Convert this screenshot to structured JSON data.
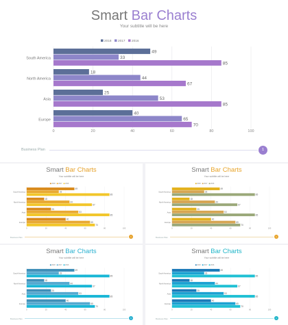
{
  "slides": [
    {
      "key": "main",
      "title_plain": "Smart",
      "title_accent": "Bar Charts",
      "subtitle": "Your subtitle will be here",
      "footer": {
        "label_plain": "Business",
        "label_bold": "Plan",
        "page": "1"
      },
      "colors": {
        "accent": "#9a7fd0",
        "series": [
          "#5c6f98",
          "#8d86c9",
          "#a678cc"
        ],
        "line": "#dcdcee"
      }
    },
    {
      "key": "s1",
      "title_plain": "Smart",
      "title_accent": "Bar Charts",
      "subtitle": "Your subtitle will be here",
      "footer": {
        "label_plain": "Business",
        "label_bold": "Plan",
        "page": "1"
      },
      "colors": {
        "accent": "#e6a12a",
        "series": [
          "#d98a1c",
          "#e8a932",
          "#f2c62a"
        ],
        "line": "#f1d9a8"
      }
    },
    {
      "key": "s2",
      "title_plain": "Smart",
      "title_accent": "Bar Charts",
      "subtitle": "Your subtitle will be here",
      "footer": {
        "label_plain": "Business",
        "label_bold": "Plan",
        "page": "1"
      },
      "colors": {
        "accent": "#e8a42a",
        "series": [
          "#e3b11d",
          "#d6a552",
          "#9aa879"
        ],
        "line": "#efdcb0"
      }
    },
    {
      "key": "s3",
      "title_plain": "Smart",
      "title_accent": "Bar Charts",
      "subtitle": "Your subtitle will be here",
      "footer": {
        "label_plain": "Business",
        "label_bold": "Plan",
        "page": "1"
      },
      "colors": {
        "accent": "#29b0d0",
        "series": [
          "#3f8fb8",
          "#55a9d0",
          "#18b6d6"
        ],
        "line": "#b9e2ee"
      }
    },
    {
      "key": "s4",
      "title_plain": "Smart",
      "title_accent": "Bar Charts",
      "subtitle": "Your subtitle will be here",
      "footer": {
        "label_plain": "Business",
        "label_bold": "Plan",
        "page": "1"
      },
      "colors": {
        "accent": "#1fb5c8",
        "series": [
          "#1b7ab8",
          "#1ca2d2",
          "#20c0d4"
        ],
        "line": "#b5e5ec"
      }
    }
  ],
  "chart_data": {
    "type": "bar",
    "orientation": "horizontal",
    "categories": [
      "South America",
      "North America",
      "Asia",
      "Europe"
    ],
    "series": [
      {
        "name": "2018",
        "values": [
          49,
          18,
          25,
          40
        ]
      },
      {
        "name": "2017",
        "values": [
          33,
          44,
          53,
          65
        ]
      },
      {
        "name": "2016",
        "values": [
          85,
          67,
          85,
          70
        ]
      }
    ],
    "xlim": [
      0,
      100
    ],
    "xticks": [
      "0",
      "20",
      "40",
      "60",
      "80",
      "100"
    ],
    "grid": true,
    "legend": "top"
  }
}
